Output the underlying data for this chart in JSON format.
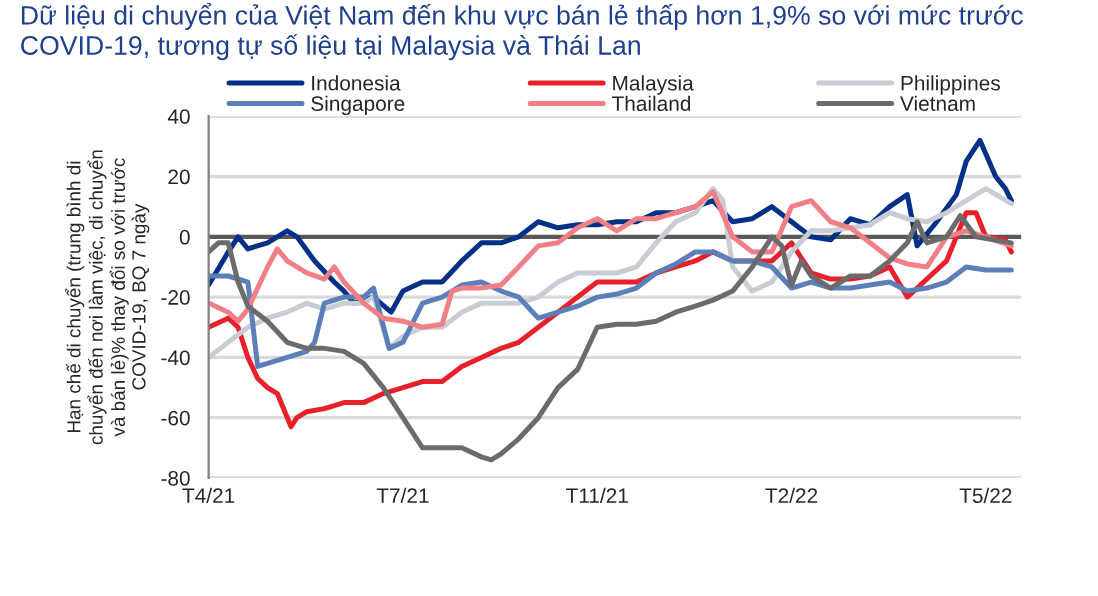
{
  "chart_data": {
    "type": "line",
    "title": "Dữ liệu di chuyển của Việt Nam đến khu vực bán lẻ thấp hơn 1,9% so với mức trước\nCOVID-19, tương tự số liệu tại Malaysia và Thái Lan",
    "ylabel": "Hạn chế di chuyển (trung bình di\nchuyển đến nơi làm việc, di chuyển\nvà bán lẻ)% thay đổi so với trước\nCOVID-19, BQ 7 ngày",
    "xlim": [
      "2021-04-20",
      "2022-06-08"
    ],
    "xticks": [
      {
        "value": "2021-04-20",
        "label": "T4/21"
      },
      {
        "value": "2021-07-28",
        "label": "T7/21"
      },
      {
        "value": "2021-11-04",
        "label": "T11/21"
      },
      {
        "value": "2022-02-11",
        "label": "T2/22"
      },
      {
        "value": "2022-05-21",
        "label": "T5/22"
      }
    ],
    "ylim": [
      -80,
      40
    ],
    "yticks": [
      -80,
      -60,
      -40,
      -20,
      0,
      20,
      40
    ],
    "grid": "y",
    "legend": "top",
    "line_style": "solid",
    "marker": "none",
    "ref_lines": [
      {
        "axis": "y",
        "value": 0,
        "color": "#595959"
      }
    ],
    "series": [
      {
        "name": "Indonesia",
        "color": "#003087",
        "x": [
          "2021-04-20",
          "2021-04-30",
          "2021-05-05",
          "2021-05-10",
          "2021-05-20",
          "2021-05-30",
          "2021-06-04",
          "2021-06-13",
          "2021-06-23",
          "2021-06-28",
          "2021-07-03",
          "2021-07-13",
          "2021-07-22",
          "2021-07-28",
          "2021-08-07",
          "2021-08-17",
          "2021-08-27",
          "2021-09-06",
          "2021-09-16",
          "2021-09-25",
          "2021-10-05",
          "2021-10-15",
          "2021-10-25",
          "2021-11-04",
          "2021-11-14",
          "2021-11-24",
          "2021-12-04",
          "2021-12-14",
          "2021-12-24",
          "2022-01-02",
          "2022-01-12",
          "2022-01-22",
          "2022-02-01",
          "2022-02-11",
          "2022-02-21",
          "2022-03-03",
          "2022-03-13",
          "2022-03-23",
          "2022-04-02",
          "2022-04-11",
          "2022-04-16",
          "2022-04-26",
          "2022-05-06",
          "2022-05-11",
          "2022-05-18",
          "2022-05-26",
          "2022-05-31",
          "2022-06-03"
        ],
        "values": [
          -16,
          -5,
          0,
          -4,
          -2,
          2,
          0,
          -8,
          -15,
          -18,
          -22,
          -20,
          -25,
          -18,
          -15,
          -15,
          -8,
          -2,
          -2,
          0,
          5,
          3,
          4,
          4,
          5,
          5,
          8,
          8,
          10,
          12,
          5,
          6,
          10,
          5,
          0,
          -1,
          6,
          4,
          10,
          14,
          -3,
          5,
          14,
          25,
          32,
          20,
          16,
          12
        ]
      },
      {
        "name": "Malaysia",
        "color": "#e8202a",
        "x": [
          "2021-04-20",
          "2021-04-30",
          "2021-05-05",
          "2021-05-10",
          "2021-05-15",
          "2021-05-20",
          "2021-05-25",
          "2021-06-01",
          "2021-06-04",
          "2021-06-09",
          "2021-06-18",
          "2021-06-28",
          "2021-07-08",
          "2021-07-18",
          "2021-07-28",
          "2021-08-07",
          "2021-08-17",
          "2021-08-27",
          "2021-09-06",
          "2021-09-16",
          "2021-09-25",
          "2021-10-05",
          "2021-10-15",
          "2021-10-25",
          "2021-11-04",
          "2021-11-14",
          "2021-11-24",
          "2021-12-04",
          "2021-12-14",
          "2021-12-24",
          "2022-01-02",
          "2022-01-12",
          "2022-01-22",
          "2022-02-01",
          "2022-02-11",
          "2022-02-21",
          "2022-03-03",
          "2022-03-13",
          "2022-03-23",
          "2022-04-02",
          "2022-04-11",
          "2022-04-21",
          "2022-05-01",
          "2022-05-11",
          "2022-05-16",
          "2022-05-21",
          "2022-05-31",
          "2022-06-03"
        ],
        "values": [
          -30,
          -27,
          -30,
          -40,
          -47,
          -50,
          -52,
          -63,
          -60,
          -58,
          -57,
          -55,
          -55,
          -52,
          -50,
          -48,
          -48,
          -43,
          -40,
          -37,
          -35,
          -30,
          -25,
          -20,
          -15,
          -15,
          -15,
          -12,
          -10,
          -8,
          -5,
          -8,
          -8,
          -8,
          -2,
          -12,
          -14,
          -14,
          -13,
          -10,
          -20,
          -14,
          -8,
          8,
          8,
          0,
          -1,
          -5
        ]
      },
      {
        "name": "Philippines",
        "color": "#c8ccd4",
        "x": [
          "2021-04-20",
          "2021-04-30",
          "2021-05-10",
          "2021-05-20",
          "2021-05-30",
          "2021-06-09",
          "2021-06-18",
          "2021-06-28",
          "2021-07-08",
          "2021-07-13",
          "2021-07-21",
          "2021-07-28",
          "2021-08-07",
          "2021-08-17",
          "2021-08-27",
          "2021-09-06",
          "2021-09-16",
          "2021-09-25",
          "2021-10-05",
          "2021-10-15",
          "2021-10-25",
          "2021-11-04",
          "2021-11-14",
          "2021-11-24",
          "2021-12-04",
          "2021-12-14",
          "2021-12-24",
          "2022-01-02",
          "2022-01-07",
          "2022-01-12",
          "2022-01-22",
          "2022-02-01",
          "2022-02-11",
          "2022-02-21",
          "2022-03-03",
          "2022-03-13",
          "2022-03-23",
          "2022-04-02",
          "2022-04-11",
          "2022-04-21",
          "2022-05-01",
          "2022-05-11",
          "2022-05-21",
          "2022-06-03"
        ],
        "values": [
          -40,
          -35,
          -30,
          -27,
          -25,
          -22,
          -24,
          -22,
          -22,
          -20,
          -37,
          -33,
          -30,
          -30,
          -25,
          -22,
          -22,
          -22,
          -20,
          -15,
          -12,
          -12,
          -12,
          -10,
          -2,
          5,
          8,
          16,
          12,
          -10,
          -18,
          -15,
          -5,
          2,
          2,
          3,
          4,
          8,
          6,
          5,
          8,
          12,
          16,
          11
        ]
      },
      {
        "name": "Singapore",
        "color": "#5b7fb8",
        "x": [
          "2021-04-20",
          "2021-04-30",
          "2021-05-10",
          "2021-05-15",
          "2021-05-20",
          "2021-05-30",
          "2021-06-09",
          "2021-06-13",
          "2021-06-18",
          "2021-06-28",
          "2021-07-08",
          "2021-07-13",
          "2021-07-21",
          "2021-07-28",
          "2021-08-07",
          "2021-08-17",
          "2021-08-27",
          "2021-09-06",
          "2021-09-16",
          "2021-09-25",
          "2021-10-05",
          "2021-10-15",
          "2021-10-25",
          "2021-11-04",
          "2021-11-14",
          "2021-11-24",
          "2021-12-04",
          "2021-12-14",
          "2021-12-24",
          "2022-01-02",
          "2022-01-12",
          "2022-01-22",
          "2022-02-01",
          "2022-02-11",
          "2022-02-21",
          "2022-03-03",
          "2022-03-13",
          "2022-03-23",
          "2022-04-02",
          "2022-04-11",
          "2022-04-21",
          "2022-05-01",
          "2022-05-11",
          "2022-05-21",
          "2022-06-03"
        ],
        "values": [
          -13,
          -13,
          -15,
          -43,
          -42,
          -40,
          -38,
          -35,
          -22,
          -20,
          -20,
          -17,
          -37,
          -35,
          -22,
          -20,
          -16,
          -15,
          -18,
          -20,
          -27,
          -25,
          -23,
          -20,
          -19,
          -17,
          -12,
          -9,
          -5,
          -5,
          -8,
          -8,
          -10,
          -17,
          -15,
          -17,
          -17,
          -16,
          -15,
          -18,
          -17,
          -15,
          -10,
          -11,
          -11
        ]
      },
      {
        "name": "Thailand",
        "color": "#f27f86",
        "x": [
          "2021-04-20",
          "2021-04-30",
          "2021-05-05",
          "2021-05-10",
          "2021-05-15",
          "2021-05-20",
          "2021-05-25",
          "2021-05-30",
          "2021-06-09",
          "2021-06-18",
          "2021-06-23",
          "2021-06-28",
          "2021-07-08",
          "2021-07-18",
          "2021-07-28",
          "2021-08-07",
          "2021-08-17",
          "2021-08-22",
          "2021-08-27",
          "2021-09-06",
          "2021-09-16",
          "2021-09-25",
          "2021-10-05",
          "2021-10-15",
          "2021-10-25",
          "2021-11-04",
          "2021-11-14",
          "2021-11-24",
          "2021-12-04",
          "2021-12-14",
          "2021-12-24",
          "2022-01-02",
          "2022-01-12",
          "2022-01-22",
          "2022-02-01",
          "2022-02-11",
          "2022-02-21",
          "2022-03-03",
          "2022-03-13",
          "2022-03-23",
          "2022-04-02",
          "2022-04-11",
          "2022-04-21",
          "2022-05-01",
          "2022-05-11",
          "2022-05-21",
          "2022-06-03"
        ],
        "values": [
          -22,
          -25,
          -28,
          -24,
          -17,
          -10,
          -4,
          -8,
          -12,
          -14,
          -10,
          -15,
          -22,
          -27,
          -28,
          -30,
          -29,
          -18,
          -17,
          -17,
          -16,
          -10,
          -3,
          -2,
          3,
          6,
          2,
          6,
          6,
          8,
          10,
          15,
          0,
          -5,
          -5,
          10,
          12,
          5,
          3,
          -2,
          -7,
          -9,
          -10,
          0,
          2,
          0,
          -3
        ]
      },
      {
        "name": "Vietnam",
        "color": "#6b6b6b",
        "x": [
          "2021-04-20",
          "2021-04-25",
          "2021-04-30",
          "2021-05-05",
          "2021-05-10",
          "2021-05-20",
          "2021-05-30",
          "2021-06-09",
          "2021-06-18",
          "2021-06-28",
          "2021-07-08",
          "2021-07-18",
          "2021-07-28",
          "2021-08-07",
          "2021-08-17",
          "2021-08-27",
          "2021-09-06",
          "2021-09-11",
          "2021-09-16",
          "2021-09-25",
          "2021-10-05",
          "2021-10-15",
          "2021-10-25",
          "2021-11-04",
          "2021-11-14",
          "2021-11-24",
          "2021-12-04",
          "2021-12-14",
          "2021-12-24",
          "2022-01-02",
          "2022-01-12",
          "2022-01-22",
          "2022-02-01",
          "2022-02-06",
          "2022-02-11",
          "2022-02-16",
          "2022-02-21",
          "2022-03-03",
          "2022-03-13",
          "2022-03-23",
          "2022-04-02",
          "2022-04-11",
          "2022-04-16",
          "2022-04-21",
          "2022-05-01",
          "2022-05-08",
          "2022-05-16",
          "2022-06-03"
        ],
        "values": [
          -5,
          -2,
          -2,
          -15,
          -23,
          -28,
          -35,
          -37,
          -37,
          -38,
          -42,
          -50,
          -60,
          -70,
          -70,
          -70,
          -73,
          -74,
          -72,
          -67,
          -60,
          -50,
          -44,
          -30,
          -29,
          -29,
          -28,
          -25,
          -23,
          -21,
          -18,
          -10,
          0,
          -3,
          -16,
          -8,
          -13,
          -17,
          -13,
          -13,
          -8,
          -2,
          5,
          -2,
          0,
          7,
          0,
          -2
        ]
      }
    ]
  }
}
